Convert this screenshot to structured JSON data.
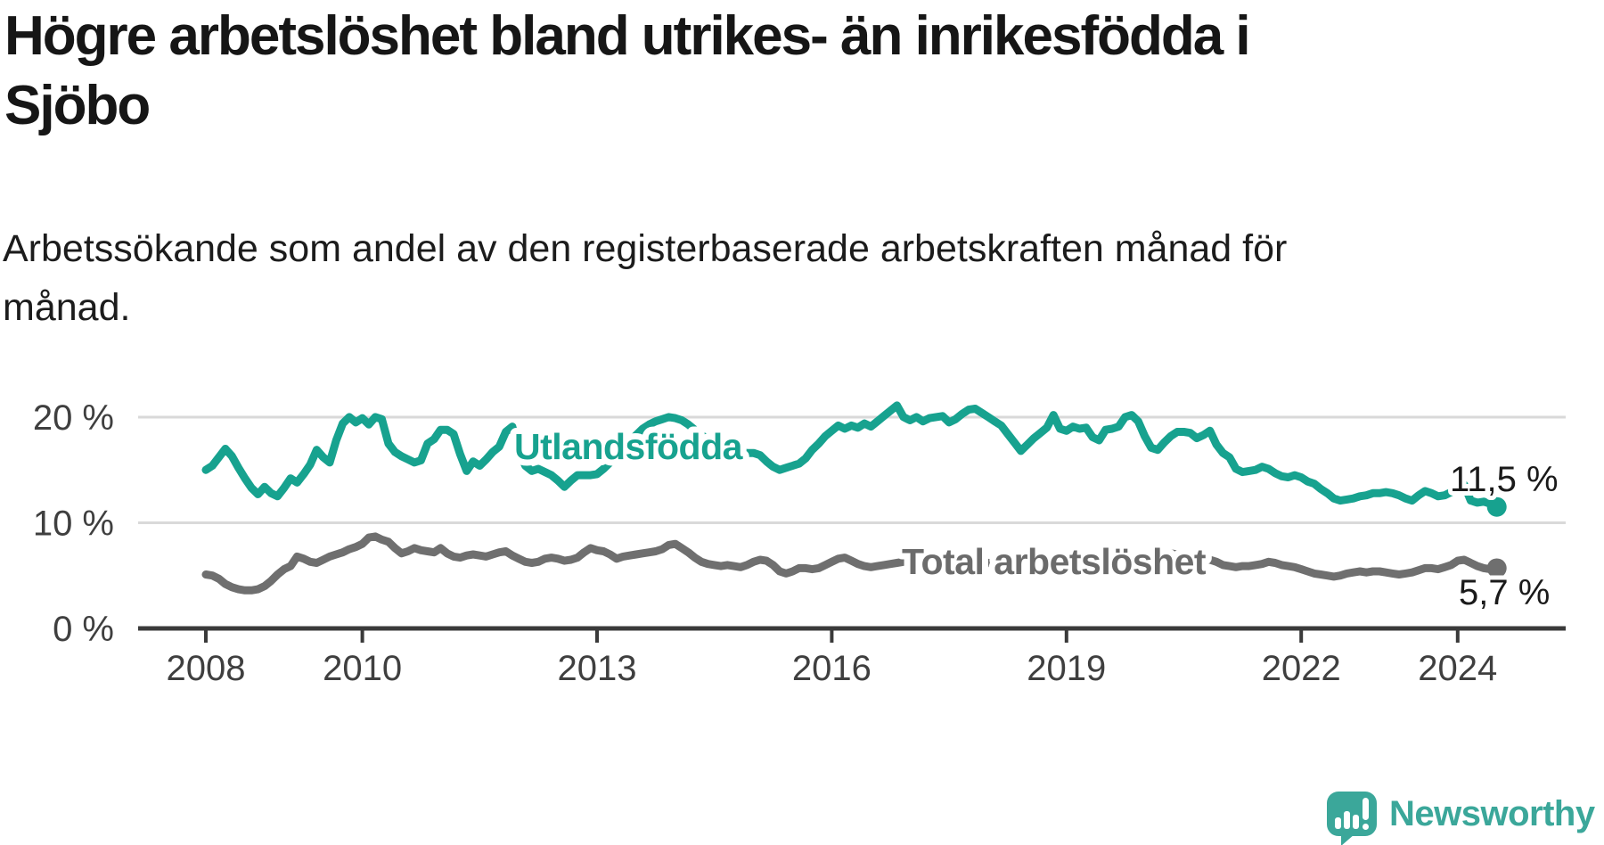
{
  "header": {
    "title": "Högre arbetslöshet bland utrikes- än inrikesfödda i Sjöbo",
    "title_lines": [
      "Högre arbetslöshet bland utrikes- än inrikesfödda i",
      "Sjöbo"
    ],
    "subtitle": "Arbetssökande som andel av den registerbaserade arbetskraften månad för månad.",
    "subtitle_lines": [
      "Arbetssökande som andel av den registerbaserade arbetskraften månad för",
      "månad."
    ]
  },
  "footer": {
    "brand": "Newsworthy"
  },
  "colors": {
    "utlandsfodda": "#17a28f",
    "total_line": "#6f6f6f",
    "total_label": "#6b6b6b",
    "annotation": "#1a1a1a",
    "axis": "#3a3a3a",
    "tick_text": "#3f3f3f",
    "grid": "#d9d9d9",
    "brand": "#3ba79a"
  },
  "chart_data": {
    "type": "line",
    "title": "Högre arbetslöshet bland utrikes- än inrikesfödda i Sjöbo",
    "subtitle": "Arbetssökande som andel av den registerbaserade arbetskraften månad för månad.",
    "x_start_year": 2008,
    "x_step_months": 1,
    "x_end_label": "jul 2024",
    "x_ticks": [
      "2008",
      "2010",
      "2013",
      "2016",
      "2019",
      "2022",
      "2024"
    ],
    "yticks": [
      0,
      10,
      20
    ],
    "ytick_labels": [
      "0 %",
      "10 %",
      "20 %"
    ],
    "ylim": [
      0,
      22
    ],
    "grid": "horizontal",
    "legend_position": "inline-labels",
    "series": [
      {
        "name": "Utlandsfödda",
        "color": "#17a28f",
        "end_label": "11,5 %",
        "end_value": 11.5,
        "values": [
          15.0,
          15.4,
          16.2,
          17.0,
          16.3,
          15.2,
          14.2,
          13.3,
          12.7,
          13.4,
          12.8,
          12.5,
          13.3,
          14.2,
          13.8,
          14.6,
          15.5,
          16.9,
          16.2,
          15.7,
          17.8,
          19.4,
          20.0,
          19.5,
          19.9,
          19.3,
          20.0,
          19.8,
          17.5,
          16.7,
          16.3,
          16.0,
          15.7,
          15.9,
          17.5,
          17.9,
          18.8,
          18.8,
          18.4,
          16.5,
          14.9,
          15.8,
          15.4,
          16.0,
          16.7,
          17.2,
          18.6,
          19.1,
          16.8,
          15.4,
          14.9,
          15.1,
          14.8,
          14.5,
          14.0,
          13.4,
          14.0,
          14.5,
          14.5,
          14.5,
          14.6,
          15.1,
          15.7,
          16.4,
          17.1,
          17.7,
          18.3,
          18.9,
          19.3,
          19.6,
          19.8,
          20.0,
          19.9,
          19.7,
          19.3,
          18.8,
          18.3,
          17.9,
          17.5,
          17.2,
          17.0,
          16.8,
          16.7,
          16.6,
          16.6,
          16.4,
          15.8,
          15.3,
          15.0,
          15.2,
          15.4,
          15.6,
          16.1,
          16.9,
          17.5,
          18.2,
          18.7,
          19.2,
          18.9,
          19.2,
          19.0,
          19.4,
          19.1,
          19.6,
          20.1,
          20.6,
          21.1,
          20.0,
          19.7,
          20.0,
          19.6,
          19.9,
          20.0,
          20.1,
          19.5,
          19.8,
          20.3,
          20.7,
          20.8,
          20.4,
          20.0,
          19.6,
          19.2,
          18.4,
          17.6,
          16.8,
          17.4,
          18.0,
          18.5,
          19.0,
          20.2,
          18.9,
          18.7,
          19.1,
          18.9,
          19.0,
          18.1,
          17.8,
          18.8,
          18.9,
          19.1,
          20.0,
          20.2,
          19.6,
          18.2,
          17.1,
          16.9,
          17.6,
          18.2,
          18.6,
          18.6,
          18.5,
          18.0,
          18.3,
          18.7,
          17.4,
          16.6,
          16.2,
          15.1,
          14.8,
          14.9,
          15.0,
          15.3,
          15.1,
          14.7,
          14.4,
          14.3,
          14.5,
          14.3,
          13.9,
          13.7,
          13.2,
          12.8,
          12.3,
          12.1,
          12.2,
          12.3,
          12.5,
          12.6,
          12.8,
          12.8,
          12.9,
          12.8,
          12.6,
          12.3,
          12.1,
          12.6,
          13.0,
          12.8,
          12.5,
          12.6,
          12.9,
          13.3,
          13.6,
          12.1,
          11.9,
          12.0,
          11.8,
          11.5
        ]
      },
      {
        "name": "Total arbetslöshet",
        "color": "#6f6f6f",
        "end_label": "5,7 %",
        "end_value": 5.7,
        "values": [
          5.1,
          5.0,
          4.7,
          4.2,
          3.9,
          3.7,
          3.6,
          3.6,
          3.7,
          4.0,
          4.5,
          5.1,
          5.6,
          5.9,
          6.8,
          6.6,
          6.3,
          6.2,
          6.5,
          6.8,
          7.0,
          7.2,
          7.5,
          7.7,
          8.0,
          8.6,
          8.7,
          8.4,
          8.2,
          7.6,
          7.1,
          7.3,
          7.6,
          7.4,
          7.3,
          7.2,
          7.6,
          7.1,
          6.8,
          6.7,
          6.9,
          7.0,
          6.9,
          6.8,
          7.0,
          7.2,
          7.3,
          6.9,
          6.6,
          6.3,
          6.2,
          6.3,
          6.6,
          6.7,
          6.6,
          6.4,
          6.5,
          6.7,
          7.2,
          7.6,
          7.4,
          7.3,
          7.0,
          6.6,
          6.8,
          6.9,
          7.0,
          7.1,
          7.2,
          7.3,
          7.5,
          7.9,
          8.0,
          7.6,
          7.2,
          6.7,
          6.3,
          6.1,
          6.0,
          5.9,
          6.0,
          5.9,
          5.8,
          6.0,
          6.3,
          6.5,
          6.4,
          6.0,
          5.4,
          5.2,
          5.4,
          5.7,
          5.7,
          5.6,
          5.7,
          6.0,
          6.3,
          6.6,
          6.7,
          6.4,
          6.1,
          5.9,
          5.8,
          5.9,
          6.0,
          6.1,
          6.2,
          6.3,
          6.4,
          6.5,
          6.4,
          6.3,
          6.2,
          6.3,
          6.4,
          6.3,
          6.2,
          6.3,
          6.4,
          6.3,
          6.2,
          6.1,
          6.0,
          5.9,
          6.0,
          6.1,
          6.0,
          5.9,
          6.0,
          6.1,
          6.2,
          6.1,
          6.0,
          6.1,
          6.2,
          6.3,
          6.2,
          6.3,
          6.4,
          6.3,
          6.2,
          6.3,
          6.4,
          6.3,
          6.2,
          6.3,
          6.6,
          7.0,
          7.1,
          7.0,
          6.9,
          6.8,
          6.7,
          6.6,
          6.5,
          6.3,
          6.0,
          5.9,
          5.8,
          5.9,
          5.9,
          6.0,
          6.1,
          6.3,
          6.2,
          6.0,
          5.9,
          5.8,
          5.6,
          5.4,
          5.2,
          5.1,
          5.0,
          4.9,
          5.0,
          5.2,
          5.3,
          5.4,
          5.3,
          5.4,
          5.4,
          5.3,
          5.2,
          5.1,
          5.2,
          5.3,
          5.5,
          5.7,
          5.7,
          5.6,
          5.8,
          6.0,
          6.4,
          6.5,
          6.2,
          5.9,
          5.7,
          5.6,
          5.7
        ]
      }
    ]
  }
}
